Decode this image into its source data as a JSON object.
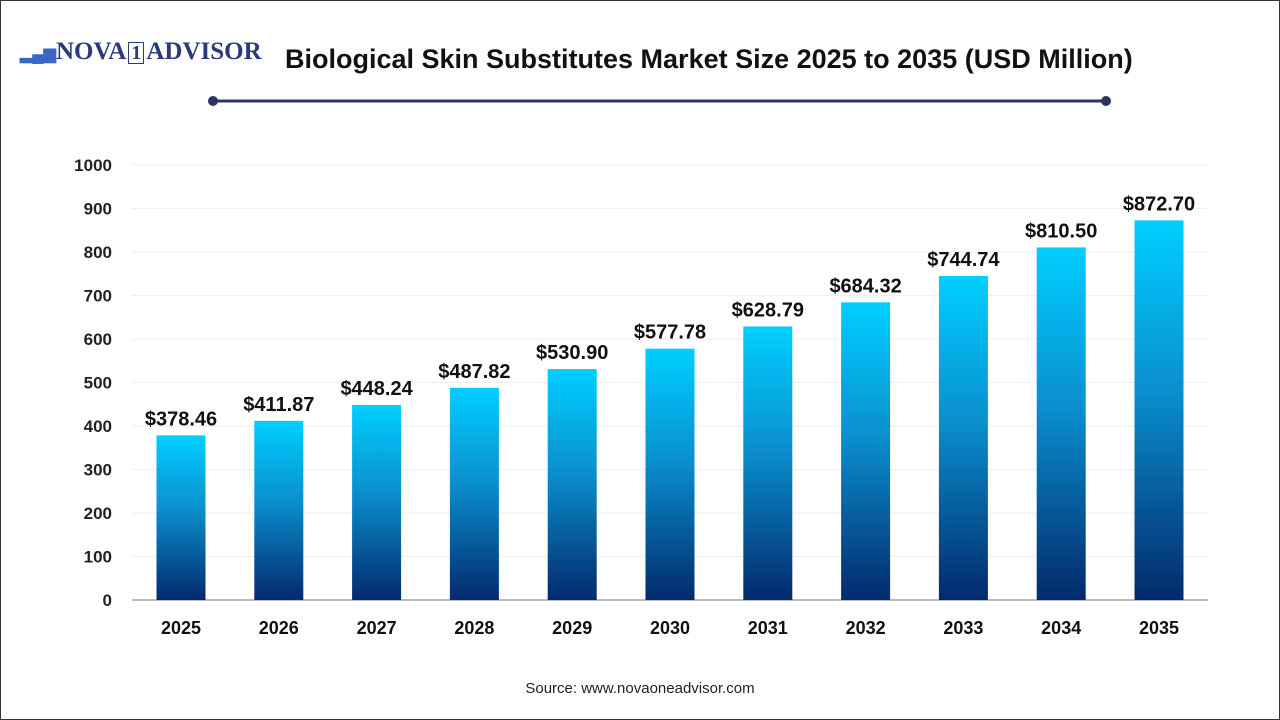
{
  "logo": {
    "text_left": "NOVA",
    "text_num": "1",
    "text_right": "ADVISOR"
  },
  "title": "Biological Skin Substitutes Market Size 2025 to 2035 (USD Million)",
  "source": "Source: www.novaoneadvisor.com",
  "colors": {
    "bar_top": "#00cfff",
    "bar_bottom": "#032a6c",
    "title_line": "#2b3560",
    "axis": "#bbbbbb"
  },
  "chart_data": {
    "type": "bar",
    "title": "Biological Skin Substitutes Market Size 2025 to 2035 (USD Million)",
    "xlabel": "",
    "ylabel": "",
    "categories": [
      "2025",
      "2026",
      "2027",
      "2028",
      "2029",
      "2030",
      "2031",
      "2032",
      "2033",
      "2034",
      "2035"
    ],
    "values": [
      378.46,
      411.87,
      448.24,
      487.82,
      530.9,
      577.78,
      628.79,
      684.32,
      744.74,
      810.5,
      872.7
    ],
    "data_labels": [
      "$378.46",
      "$411.87",
      "$448.24",
      "$487.82",
      "$530.90",
      "$577.78",
      "$628.79",
      "$684.32",
      "$744.74",
      "$810.50",
      "$872.70"
    ],
    "ylim": [
      0,
      1000
    ],
    "yticks": [
      "0",
      "100",
      "200",
      "300",
      "400",
      "500",
      "600",
      "700",
      "800",
      "900",
      "1000"
    ],
    "grid": true,
    "legend": "none"
  }
}
